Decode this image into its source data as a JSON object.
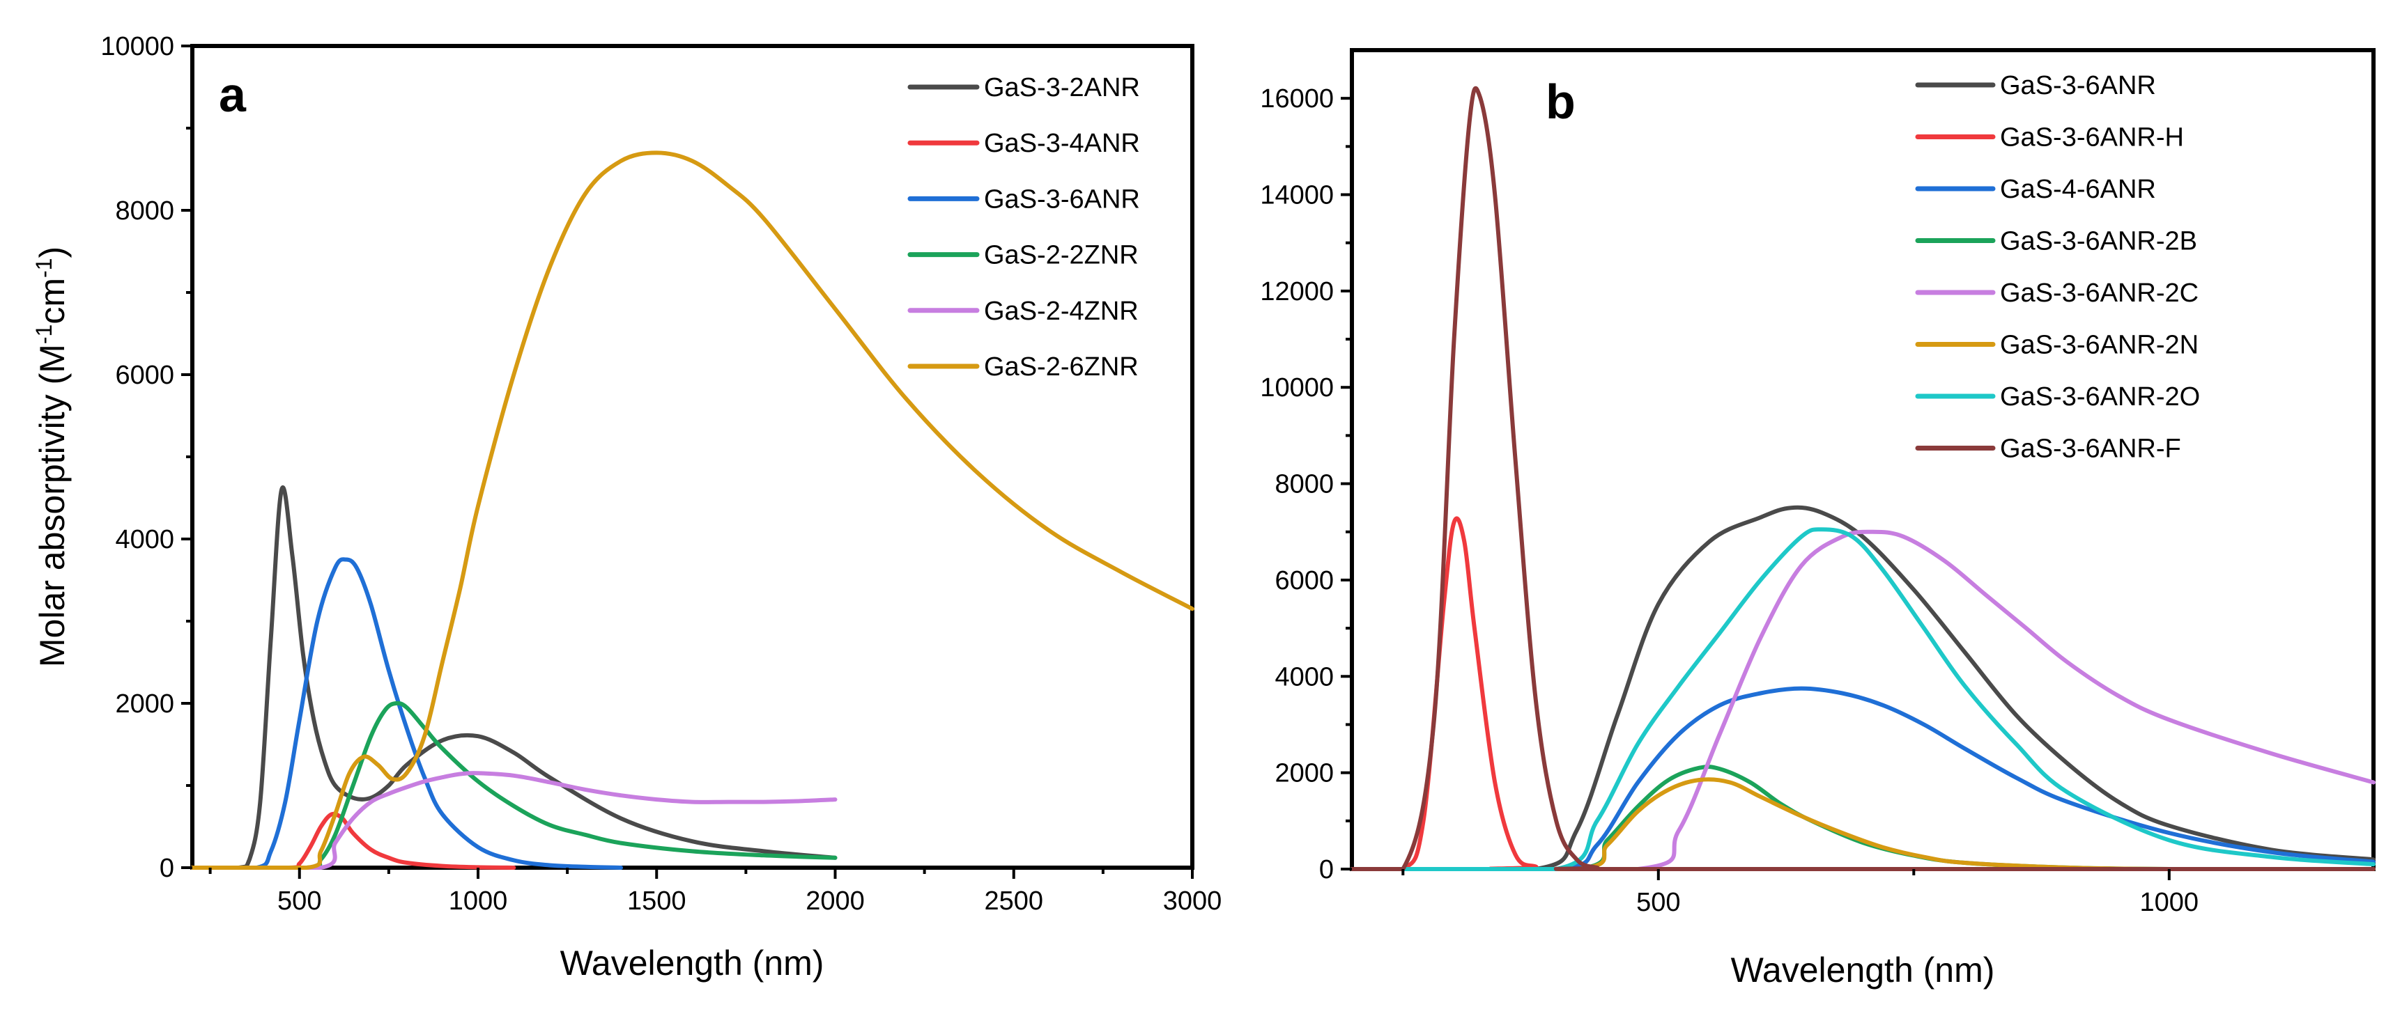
{
  "chart_data": [
    {
      "panel_label": "a",
      "type": "line",
      "xlabel": "Wavelength (nm)",
      "ylabel": "Molar absorptivity (M-1cm-1)",
      "ylabel_parts": {
        "base": "Molar absorptivity (M",
        "sup1": "-1",
        "mid": "cm",
        "sup2": "-1",
        "end": ")"
      },
      "xlim": [
        200,
        3000
      ],
      "ylim": [
        0,
        10000
      ],
      "xticks": [
        "500",
        "1000",
        "1500",
        "2000",
        "2500",
        "3000"
      ],
      "xtick_values": [
        500,
        1000,
        1500,
        2000,
        2500,
        3000
      ],
      "yticks": [
        "0",
        "2000",
        "4000",
        "6000",
        "8000",
        "10000"
      ],
      "ytick_values": [
        0,
        2000,
        4000,
        6000,
        8000,
        10000
      ],
      "legend_position": "top-right",
      "series": [
        {
          "name": "GaS-3-2ANR",
          "color": "#4a4a4a",
          "x": [
            200,
            330,
            360,
            390,
            420,
            450,
            480,
            510,
            540,
            570,
            600,
            650,
            700,
            750,
            800,
            900,
            1000,
            1100,
            1200,
            1400,
            1600,
            1800,
            2000
          ],
          "y": [
            0,
            0,
            100,
            800,
            2800,
            4600,
            3800,
            2600,
            1800,
            1300,
            1000,
            850,
            850,
            1000,
            1250,
            1550,
            1600,
            1400,
            1100,
            600,
            320,
            200,
            120
          ]
        },
        {
          "name": "GaS-3-4ANR",
          "color": "#f0393d",
          "x": [
            200,
            470,
            500,
            530,
            560,
            590,
            620,
            650,
            700,
            750,
            800,
            900,
            1000,
            1100
          ],
          "y": [
            0,
            0,
            50,
            250,
            500,
            650,
            600,
            420,
            220,
            120,
            60,
            20,
            5,
            0
          ]
        },
        {
          "name": "GaS-3-6ANR",
          "color": "#1f6fd6",
          "x": [
            200,
            380,
            420,
            460,
            500,
            550,
            600,
            630,
            660,
            700,
            750,
            800,
            850,
            900,
            1000,
            1100,
            1200,
            1300,
            1400
          ],
          "y": [
            0,
            0,
            200,
            800,
            1800,
            3000,
            3650,
            3750,
            3650,
            3200,
            2400,
            1700,
            1100,
            650,
            250,
            90,
            30,
            10,
            0
          ]
        },
        {
          "name": "GaS-2-2ZNR",
          "color": "#1ba35a",
          "x": [
            200,
            520,
            560,
            600,
            650,
            700,
            740,
            770,
            800,
            850,
            900,
            1000,
            1100,
            1200,
            1300,
            1400,
            1600,
            1800,
            2000
          ],
          "y": [
            0,
            0,
            100,
            400,
            1000,
            1600,
            1920,
            2000,
            1950,
            1700,
            1450,
            1050,
            750,
            520,
            400,
            300,
            200,
            150,
            120
          ]
        },
        {
          "name": "GaS-2-4ZNR",
          "color": "#c77ee0",
          "x": [
            200,
            560,
            600,
            650,
            700,
            750,
            800,
            850,
            900,
            950,
            1000,
            1100,
            1200,
            1300,
            1400,
            1500,
            1600,
            1700,
            1800,
            1900,
            2000
          ],
          "y": [
            0,
            0,
            300,
            600,
            800,
            900,
            980,
            1050,
            1100,
            1140,
            1150,
            1120,
            1040,
            950,
            880,
            830,
            800,
            800,
            800,
            810,
            830
          ]
        },
        {
          "name": "GaS-2-6ZNR",
          "color": "#d69a12",
          "x": [
            200,
            520,
            560,
            600,
            640,
            680,
            720,
            760,
            800,
            850,
            900,
            950,
            1000,
            1100,
            1200,
            1300,
            1400,
            1500,
            1600,
            1700,
            1800,
            2000,
            2200,
            2400,
            2600,
            2800,
            3000
          ],
          "y": [
            0,
            0,
            200,
            650,
            1150,
            1350,
            1250,
            1080,
            1150,
            1600,
            2500,
            3400,
            4400,
            6000,
            7300,
            8200,
            8600,
            8700,
            8600,
            8300,
            7900,
            6800,
            5700,
            4800,
            4100,
            3600,
            3150
          ]
        }
      ]
    },
    {
      "panel_label": "b",
      "type": "line",
      "xlabel": "Wavelength (nm)",
      "ylabel": "",
      "xlim": [
        200,
        1200
      ],
      "ylim": [
        0,
        17000
      ],
      "xticks": [
        "500",
        "1000"
      ],
      "xtick_values": [
        500,
        1000
      ],
      "yticks": [
        "0",
        "2000",
        "4000",
        "6000",
        "8000",
        "10000",
        "12000",
        "14000",
        "16000"
      ],
      "ytick_values": [
        0,
        2000,
        4000,
        6000,
        8000,
        10000,
        12000,
        14000,
        16000
      ],
      "legend_position": "top-center",
      "series": [
        {
          "name": "GaS-3-6ANR",
          "color": "#4a4a4a",
          "x": [
            200,
            380,
            420,
            460,
            500,
            550,
            600,
            630,
            660,
            700,
            750,
            800,
            850,
            900,
            950,
            1000,
            1100,
            1200
          ],
          "y": [
            0,
            0,
            800,
            3200,
            5500,
            6800,
            7300,
            7500,
            7400,
            6900,
            5800,
            4500,
            3200,
            2200,
            1400,
            900,
            400,
            200
          ]
        },
        {
          "name": "GaS-3-6ANR-H",
          "color": "#f0393d",
          "x": [
            200,
            250,
            270,
            290,
            300,
            310,
            320,
            340,
            360,
            380,
            400,
            1200
          ],
          "y": [
            0,
            0,
            1000,
            5500,
            7200,
            6800,
            5000,
            1800,
            300,
            50,
            0,
            0
          ]
        },
        {
          "name": "GaS-4-6ANR",
          "color": "#1f6fd6",
          "x": [
            200,
            400,
            440,
            480,
            520,
            560,
            600,
            640,
            680,
            720,
            760,
            800,
            850,
            900,
            1000,
            1100,
            1200
          ],
          "y": [
            0,
            0,
            500,
            1800,
            2800,
            3400,
            3650,
            3750,
            3650,
            3400,
            3000,
            2500,
            1900,
            1400,
            750,
            350,
            150
          ]
        },
        {
          "name": "GaS-3-6ANR-2B",
          "color": "#1ba35a",
          "x": [
            200,
            420,
            450,
            480,
            510,
            540,
            560,
            590,
            620,
            650,
            700,
            750,
            800,
            900,
            1000,
            1200
          ],
          "y": [
            0,
            0,
            600,
            1300,
            1850,
            2100,
            2080,
            1800,
            1350,
            1000,
            550,
            280,
            130,
            30,
            0,
            0
          ]
        },
        {
          "name": "GaS-3-6ANR-2C",
          "color": "#c77ee0",
          "x": [
            200,
            480,
            520,
            560,
            600,
            640,
            680,
            710,
            740,
            780,
            820,
            860,
            900,
            950,
            1000,
            1100,
            1200
          ],
          "y": [
            0,
            0,
            800,
            2800,
            4800,
            6300,
            6900,
            7000,
            6900,
            6400,
            5700,
            5000,
            4300,
            3600,
            3100,
            2400,
            1800
          ]
        },
        {
          "name": "GaS-3-6ANR-2N",
          "color": "#d69a12",
          "x": [
            200,
            420,
            450,
            480,
            510,
            540,
            570,
            600,
            640,
            680,
            720,
            760,
            800,
            900,
            1000,
            1200
          ],
          "y": [
            0,
            0,
            500,
            1200,
            1650,
            1850,
            1800,
            1500,
            1100,
            750,
            450,
            250,
            130,
            30,
            0,
            0
          ]
        },
        {
          "name": "GaS-3-6ANR-2O",
          "color": "#1ec8c8",
          "x": [
            200,
            400,
            440,
            480,
            520,
            560,
            600,
            640,
            660,
            690,
            720,
            760,
            800,
            850,
            900,
            1000,
            1100,
            1200
          ],
          "y": [
            0,
            0,
            1000,
            2600,
            3800,
            4900,
            6000,
            6900,
            7050,
            6900,
            6200,
            5000,
            3800,
            2600,
            1600,
            600,
            250,
            100
          ]
        },
        {
          "name": "GaS-3-6ANR-F",
          "color": "#8a3a3a",
          "x": [
            200,
            250,
            280,
            300,
            315,
            325,
            340,
            360,
            380,
            400,
            420,
            440,
            460,
            1200
          ],
          "y": [
            0,
            0,
            3000,
            11000,
            15500,
            16050,
            14000,
            8500,
            3500,
            1000,
            200,
            30,
            0,
            0
          ]
        }
      ]
    }
  ]
}
